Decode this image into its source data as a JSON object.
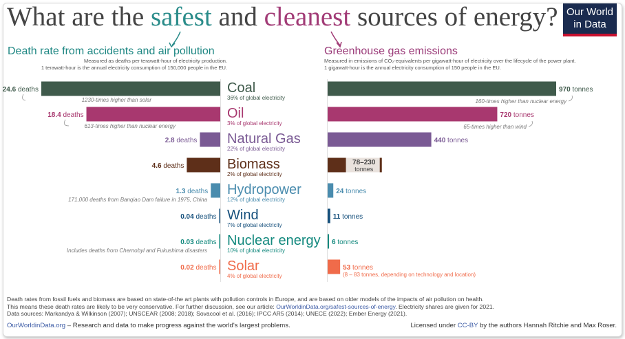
{
  "title": {
    "part1": "What are the ",
    "safe": "safest",
    "part2": " and ",
    "clean": "cleanest",
    "part3": " sources of energy?"
  },
  "logo": {
    "line1": "Our World",
    "line2": "in Data"
  },
  "left_header": {
    "title": "Death rate from accidents and air pollution",
    "sub1": "Measured as deaths per terawatt-hour of electricity production.",
    "sub2": "1 terawatt-hour is the annual electricity consumption of 150,000 people in the EU."
  },
  "right_header": {
    "title": "Greenhouse gas emissions",
    "sub1": "Measured in emissions of CO₂-equivalents per gigawatt-hour of electricity over the lifecycle of the power plant.",
    "sub2": "1 gigawatt-hour is the annual electricity consumption of 150 people in the EU."
  },
  "colors": {
    "Coal": "#3f5a4b",
    "Oil": "#a8386f",
    "Natural Gas": "#7a5a94",
    "Biomass": "#5e2f19",
    "Hydropower": "#4a8cae",
    "Wind": "#16507c",
    "Nuclear energy": "#13897e",
    "Solar": "#f06b4a"
  },
  "chart_data": {
    "type": "bar",
    "categories": [
      "Coal",
      "Oil",
      "Natural Gas",
      "Biomass",
      "Hydropower",
      "Wind",
      "Nuclear energy",
      "Solar"
    ],
    "share_labels": [
      "36% of global electricity",
      "3% of global electricity",
      "22% of global electricity",
      "2% of global electricity",
      "12% of global electricity",
      "7% of global electricity",
      "10% of global electricity",
      "4% of global electricity"
    ],
    "series": [
      {
        "name": "Death rate from accidents and air pollution",
        "values": [
          24.6,
          18.4,
          2.8,
          4.6,
          1.3,
          0.04,
          0.03,
          0.02
        ],
        "value_labels": [
          "24.6",
          "18.4",
          "2.8",
          "4.6",
          "1.3",
          "0.04",
          "0.03",
          "0.02"
        ],
        "unit_label": "deaths"
      },
      {
        "name": "Greenhouse gas emissions",
        "values": [
          970,
          720,
          440,
          230,
          24,
          11,
          6,
          53
        ],
        "value_labels": [
          "970",
          "720",
          "440",
          "78–230",
          "24",
          "11",
          "6",
          "53"
        ],
        "unit_label": "tonnes",
        "range": {
          "Biomass": [
            78,
            230
          ]
        }
      }
    ],
    "notes_left": {
      "Coal": "1230-times higher than solar",
      "Oil": "613-times higher than nuclear energy",
      "Hydropower": "171,000 deaths from Banqiao Dam failure in 1975, China",
      "Nuclear energy": "Includes deaths from Chernobyl and Fukushima disasters"
    },
    "notes_right": {
      "Coal": "160-times higher than nuclear energy",
      "Oil": "65-times higher than wind",
      "Solar": "(8 – 83 tonnes, depending on technology and location)"
    }
  },
  "footer": {
    "line1": "Death rates from fossil fuels and biomass are based on state-of-the art plants with pollution controls in Europe, and are based on older models of the impacts of air pollution on health.",
    "line2a": "This means these death rates are likely to be very conservative. For further discussion, see our article: ",
    "line2link": "OurWorldinData.org/safest-sources-of-energy",
    "line2b": ". Electricity shares are given for 2021.",
    "line3": "Data sources: Markandya & Wilkinson (2007); UNSCEAR (2008; 2018); Sovacool et al. (2016); IPCC AR5 (2014); UNECE (2022); Ember Energy (2021).",
    "site": "OurWorldinData.org",
    "mission": " – Research and data to make progress against the world's largest problems.",
    "license_pre": "Licensed under ",
    "license_link": "CC-BY",
    "license_post": " by the authors Hannah Ritchie and Max Roser."
  }
}
